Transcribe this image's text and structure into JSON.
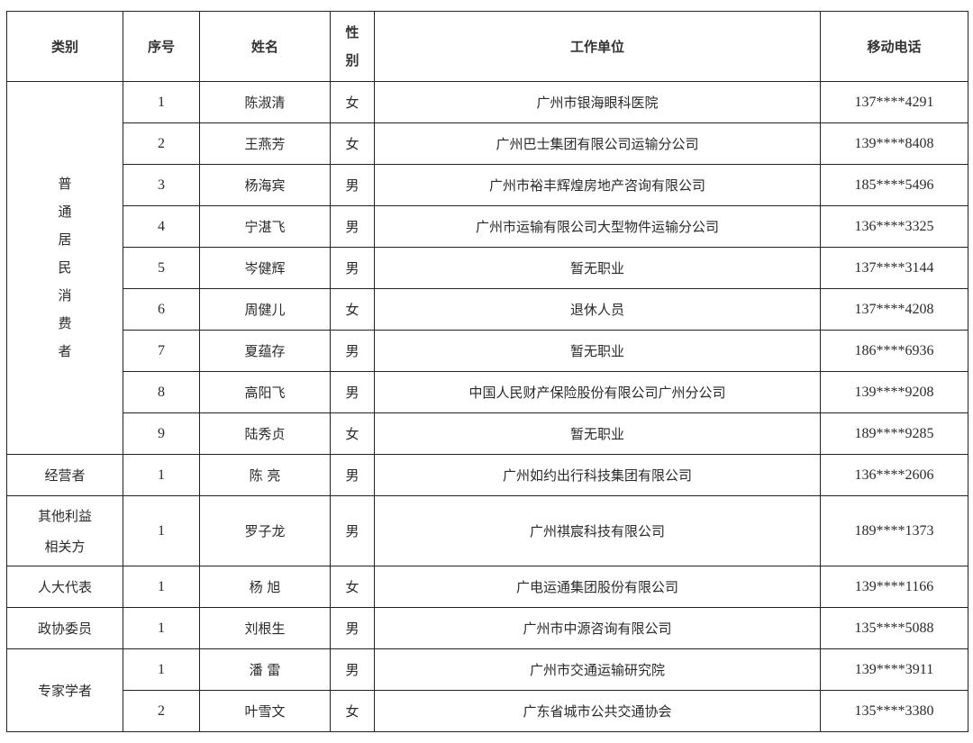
{
  "headers": {
    "category": "类别",
    "index": "序号",
    "name": "姓名",
    "gender": "性别",
    "employer": "工作单位",
    "phone": "移动电话"
  },
  "groups": [
    {
      "category": "普通居民消费者",
      "rows": [
        {
          "index": "1",
          "name": "陈淑清",
          "gender": "女",
          "employer": "广州市银海眼科医院",
          "phone": "137****4291"
        },
        {
          "index": "2",
          "name": "王燕芳",
          "gender": "女",
          "employer": "广州巴士集团有限公司运输分公司",
          "phone": "139****8408"
        },
        {
          "index": "3",
          "name": "杨海宾",
          "gender": "男",
          "employer": "广州市裕丰辉煌房地产咨询有限公司",
          "phone": "185****5496"
        },
        {
          "index": "4",
          "name": "宁湛飞",
          "gender": "男",
          "employer": "广州市运输有限公司大型物件运输分公司",
          "phone": "136****3325"
        },
        {
          "index": "5",
          "name": "岑健辉",
          "gender": "男",
          "employer": "暂无职业",
          "phone": "137****3144"
        },
        {
          "index": "6",
          "name": "周健儿",
          "gender": "女",
          "employer": "退休人员",
          "phone": "137****4208"
        },
        {
          "index": "7",
          "name": "夏蕴存",
          "gender": "男",
          "employer": "暂无职业",
          "phone": "186****6936"
        },
        {
          "index": "8",
          "name": "高阳飞",
          "gender": "男",
          "employer": "中国人民财产保险股份有限公司广州分公司",
          "phone": "139****9208"
        },
        {
          "index": "9",
          "name": "陆秀贞",
          "gender": "女",
          "employer": "暂无职业",
          "phone": "189****9285"
        }
      ]
    },
    {
      "category": "经营者",
      "rows": [
        {
          "index": "1",
          "name": "陈 亮",
          "gender": "男",
          "employer": "广州如约出行科技集团有限公司",
          "phone": "136****2606"
        }
      ]
    },
    {
      "category": "其他利益相关方",
      "rows": [
        {
          "index": "1",
          "name": "罗子龙",
          "gender": "男",
          "employer": "广州祺宸科技有限公司",
          "phone": "189****1373"
        }
      ]
    },
    {
      "category": "人大代表",
      "rows": [
        {
          "index": "1",
          "name": "杨 旭",
          "gender": "女",
          "employer": "广电运通集团股份有限公司",
          "phone": "139****1166"
        }
      ]
    },
    {
      "category": "政协委员",
      "rows": [
        {
          "index": "1",
          "name": "刘根生",
          "gender": "男",
          "employer": "广州市中源咨询有限公司",
          "phone": "135****5088"
        }
      ]
    },
    {
      "category": "专家学者",
      "rows": [
        {
          "index": "1",
          "name": "潘 雷",
          "gender": "男",
          "employer": "广州市交通运输研究院",
          "phone": "139****3911"
        },
        {
          "index": "2",
          "name": "叶雪文",
          "gender": "女",
          "employer": "广东省城市公共交通协会",
          "phone": "135****3380"
        }
      ]
    }
  ]
}
